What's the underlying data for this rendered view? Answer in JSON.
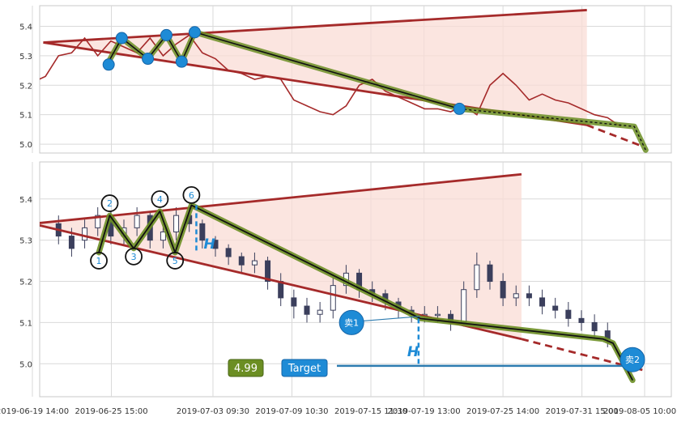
{
  "chart_data": [
    {
      "type": "line",
      "panel": "top",
      "ylim": [
        4.97,
        5.47
      ],
      "yticks": [
        5.0,
        5.1,
        5.2,
        5.3,
        5.4
      ],
      "ytick_labels": [
        "5.0",
        "5.1",
        "5.2",
        "5.3",
        "5.4"
      ],
      "grid": true,
      "colors": {
        "price": "#a52a2a",
        "channel": "#a52a2a",
        "fill": "#f9dcd6",
        "path": "#6b8e23",
        "pivot": "#1e8bd6"
      },
      "series": [
        {
          "x": [
            "2019-06-19 14:00",
            "2019-06-20 14:00",
            "2019-06-21 14:00",
            "2019-06-22 14:00",
            "2019-06-23 14:00",
            "2019-06-24 14:00",
            "2019-06-25 14:00",
            "2019-06-26 14:00",
            "2019-06-27 14:00",
            "2019-06-28 14:00",
            "2019-06-29 14:00",
            "2019-06-30 14:00",
            "2019-07-01 14:00",
            "2019-07-02 14:00",
            "2019-07-03 14:00",
            "2019-07-04 14:00",
            "2019-07-05 14:00",
            "2019-07-06 14:00",
            "2019-07-07 14:00",
            "2019-07-08 14:00",
            "2019-07-09 14:00",
            "2019-07-10 14:00",
            "2019-07-11 14:00",
            "2019-07-12 14:00",
            "2019-07-13 14:00",
            "2019-07-14 14:00",
            "2019-07-15 14:00",
            "2019-07-16 14:00",
            "2019-07-17 14:00",
            "2019-07-18 14:00",
            "2019-07-19 14:00",
            "2019-07-20 14:00",
            "2019-07-21 14:00",
            "2019-07-22 14:00",
            "2019-07-23 14:00",
            "2019-07-24 14:00",
            "2019-07-25 14:00",
            "2019-07-26 14:00",
            "2019-07-27 14:00",
            "2019-07-28 14:00",
            "2019-07-29 14:00",
            "2019-07-30 14:00",
            "2019-07-31 14:00",
            "2019-08-01 14:00",
            "2019-08-02 14:00",
            "2019-08-03 14:00"
          ],
          "values": [
            5.21,
            5.23,
            5.3,
            5.31,
            5.36,
            5.3,
            5.35,
            5.33,
            5.31,
            5.36,
            5.3,
            5.34,
            5.37,
            5.31,
            5.29,
            5.25,
            5.24,
            5.22,
            5.23,
            5.22,
            5.15,
            5.13,
            5.11,
            5.1,
            5.13,
            5.2,
            5.22,
            5.18,
            5.16,
            5.14,
            5.12,
            5.12,
            5.11,
            5.13,
            5.1,
            5.2,
            5.24,
            5.2,
            5.15,
            5.17,
            5.15,
            5.14,
            5.12,
            5.1,
            5.09,
            5.06
          ]
        }
      ],
      "pivots": [
        {
          "x": "2019-06-25 10:00",
          "y": 5.27
        },
        {
          "x": "2019-06-26 10:00",
          "y": 5.36
        },
        {
          "x": "2019-06-28 10:00",
          "y": 5.29
        },
        {
          "x": "2019-06-29 20:00",
          "y": 5.37
        },
        {
          "x": "2019-07-01 00:00",
          "y": 5.28
        },
        {
          "x": "2019-07-02 00:00",
          "y": 5.38
        },
        {
          "x": "2019-07-22 06:00",
          "y": 5.12
        }
      ],
      "channel_upper": [
        [
          "2019-06-20 10:00",
          5.345
        ],
        [
          "2019-08-01 00:00",
          5.455
        ]
      ],
      "channel_lower": [
        [
          "2019-06-20 10:00",
          5.345
        ],
        [
          "2019-08-01 00:00",
          5.065
        ]
      ],
      "channel_lower_projection": [
        [
          "2019-08-01 00:00",
          5.065
        ],
        [
          "2019-08-05 00:00",
          4.997
        ]
      ],
      "path": [
        [
          "2019-06-25 10:00",
          5.28
        ],
        [
          "2019-06-26 10:00",
          5.36
        ],
        [
          "2019-06-28 10:00",
          5.29
        ],
        [
          "2019-06-29 20:00",
          5.37
        ],
        [
          "2019-07-01 00:00",
          5.28
        ],
        [
          "2019-07-02 00:00",
          5.38
        ],
        [
          "2019-07-22 06:00",
          5.12
        ],
        [
          "2019-08-04 15:00",
          5.06
        ],
        [
          "2019-08-05 12:00",
          4.98
        ]
      ]
    },
    {
      "type": "candlestick",
      "panel": "bottom",
      "ylim": [
        4.92,
        5.49
      ],
      "yticks": [
        5.0,
        5.1,
        5.2,
        5.3,
        5.4
      ],
      "ytick_labels": [
        "5.0",
        "5.1",
        "5.2",
        "5.3",
        "5.4"
      ],
      "xtick_labels": [
        "2019-06-19 14:00",
        "2019-06-25 15:00",
        "2019-07-03 09:30",
        "2019-07-09 10:30",
        "2019-07-15 11:30",
        "2019-07-19 13:00",
        "2019-07-25 14:00",
        "2019-07-31 15:00",
        "2019-08-05 10:00"
      ],
      "grid": true,
      "colors": {
        "candle": "#3b3f5c",
        "channel": "#a52a2a",
        "fill": "#f9dcd6",
        "path": "#6b8e23",
        "marker": "#1e8bd6",
        "target_line": "#2e7cb0"
      },
      "series": [
        {
          "x": [
            "2019-06-21 14:00",
            "2019-06-22 14:00",
            "2019-06-23 14:00",
            "2019-06-24 14:00",
            "2019-06-25 14:00",
            "2019-06-26 14:00",
            "2019-06-27 14:00",
            "2019-06-28 14:00",
            "2019-06-29 14:00",
            "2019-06-30 14:00",
            "2019-07-01 14:00",
            "2019-07-02 14:00",
            "2019-07-03 14:00",
            "2019-07-04 14:00",
            "2019-07-05 14:00",
            "2019-07-06 14:00",
            "2019-07-07 14:00",
            "2019-07-08 14:00",
            "2019-07-09 14:00",
            "2019-07-10 14:00",
            "2019-07-11 14:00",
            "2019-07-12 14:00",
            "2019-07-13 14:00",
            "2019-07-14 14:00",
            "2019-07-15 14:00",
            "2019-07-16 14:00",
            "2019-07-17 14:00",
            "2019-07-18 14:00",
            "2019-07-19 14:00",
            "2019-07-20 14:00",
            "2019-07-21 14:00",
            "2019-07-22 14:00",
            "2019-07-23 14:00",
            "2019-07-24 14:00",
            "2019-07-25 14:00",
            "2019-07-26 14:00",
            "2019-07-27 14:00",
            "2019-07-28 14:00",
            "2019-07-29 14:00",
            "2019-07-30 14:00",
            "2019-07-31 14:00",
            "2019-08-01 14:00",
            "2019-08-02 14:00"
          ],
          "open": [
            5.34,
            5.31,
            5.3,
            5.33,
            5.36,
            5.31,
            5.33,
            5.36,
            5.3,
            5.32,
            5.36,
            5.34,
            5.3,
            5.28,
            5.26,
            5.24,
            5.25,
            5.2,
            5.16,
            5.14,
            5.12,
            5.13,
            5.19,
            5.22,
            5.18,
            5.17,
            5.15,
            5.13,
            5.12,
            5.12,
            5.12,
            5.1,
            5.18,
            5.24,
            5.2,
            5.16,
            5.17,
            5.16,
            5.14,
            5.13,
            5.11,
            5.1,
            5.08
          ],
          "close": [
            5.31,
            5.28,
            5.33,
            5.36,
            5.31,
            5.33,
            5.36,
            5.3,
            5.32,
            5.36,
            5.34,
            5.3,
            5.28,
            5.26,
            5.24,
            5.25,
            5.2,
            5.16,
            5.14,
            5.12,
            5.13,
            5.19,
            5.22,
            5.18,
            5.17,
            5.15,
            5.13,
            5.12,
            5.12,
            5.12,
            5.1,
            5.18,
            5.24,
            5.2,
            5.16,
            5.17,
            5.16,
            5.14,
            5.13,
            5.11,
            5.1,
            5.08,
            5.06
          ],
          "high": [
            5.36,
            5.33,
            5.35,
            5.38,
            5.37,
            5.35,
            5.38,
            5.37,
            5.34,
            5.38,
            5.37,
            5.35,
            5.31,
            5.29,
            5.27,
            5.27,
            5.26,
            5.22,
            5.18,
            5.16,
            5.15,
            5.21,
            5.24,
            5.23,
            5.2,
            5.18,
            5.16,
            5.14,
            5.14,
            5.14,
            5.13,
            5.2,
            5.27,
            5.25,
            5.22,
            5.19,
            5.19,
            5.18,
            5.16,
            5.15,
            5.13,
            5.12,
            5.1
          ],
          "low": [
            5.29,
            5.26,
            5.28,
            5.31,
            5.29,
            5.29,
            5.31,
            5.28,
            5.28,
            5.3,
            5.32,
            5.28,
            5.26,
            5.24,
            5.22,
            5.22,
            5.18,
            5.14,
            5.11,
            5.1,
            5.1,
            5.11,
            5.17,
            5.16,
            5.15,
            5.13,
            5.11,
            5.1,
            5.1,
            5.1,
            5.08,
            5.09,
            5.16,
            5.18,
            5.14,
            5.14,
            5.14,
            5.12,
            5.11,
            5.09,
            5.08,
            5.06,
            5.04
          ]
        }
      ],
      "channel_upper": [
        [
          "2019-06-19 14:00",
          5.34
        ],
        [
          "2019-07-27 00:00",
          5.46
        ]
      ],
      "channel_lower": [
        [
          "2019-06-19 14:00",
          5.34
        ],
        [
          "2019-07-27 00:00",
          5.06
        ]
      ],
      "channel_lower_projection": [
        [
          "2019-07-27 00:00",
          5.06
        ],
        [
          "2019-08-05 06:00",
          4.985
        ]
      ],
      "path": [
        [
          "2019-06-24 16:00",
          5.27
        ],
        [
          "2019-06-25 12:00",
          5.36
        ],
        [
          "2019-06-27 08:00",
          5.28
        ],
        [
          "2019-06-29 08:00",
          5.37
        ],
        [
          "2019-06-30 12:00",
          5.27
        ],
        [
          "2019-07-01 18:00",
          5.385
        ],
        [
          "2019-07-19 06:00",
          5.11
        ],
        [
          "2019-08-02 06:00",
          5.06
        ],
        [
          "2019-08-03 00:00",
          5.05
        ],
        [
          "2019-08-04 12:00",
          4.96
        ]
      ],
      "wave_labels": [
        {
          "text": "1",
          "x": "2019-06-24 16:00",
          "y": 5.27
        },
        {
          "text": "2",
          "x": "2019-06-25 12:00",
          "y": 5.37
        },
        {
          "text": "3",
          "x": "2019-06-27 08:00",
          "y": 5.28
        },
        {
          "text": "4",
          "x": "2019-06-29 08:00",
          "y": 5.38
        },
        {
          "text": "5",
          "x": "2019-06-30 12:00",
          "y": 5.27
        },
        {
          "text": "6",
          "x": "2019-07-01 18:00",
          "y": 5.39
        }
      ],
      "h_markers": [
        {
          "text": "H",
          "x": "2019-07-02 06:00",
          "y": 5.29
        },
        {
          "text": "H",
          "x": "2019-07-19 00:00",
          "y": 5.01
        }
      ],
      "sell_markers": [
        {
          "text": "卖1",
          "x": "2019-07-14 00:00",
          "y": 5.1
        },
        {
          "text": "卖2",
          "x": "2019-08-05 06:00",
          "y": 5.01
        }
      ],
      "target_value": "4.99",
      "target_label": "Target",
      "target_line_y": 4.995
    }
  ]
}
